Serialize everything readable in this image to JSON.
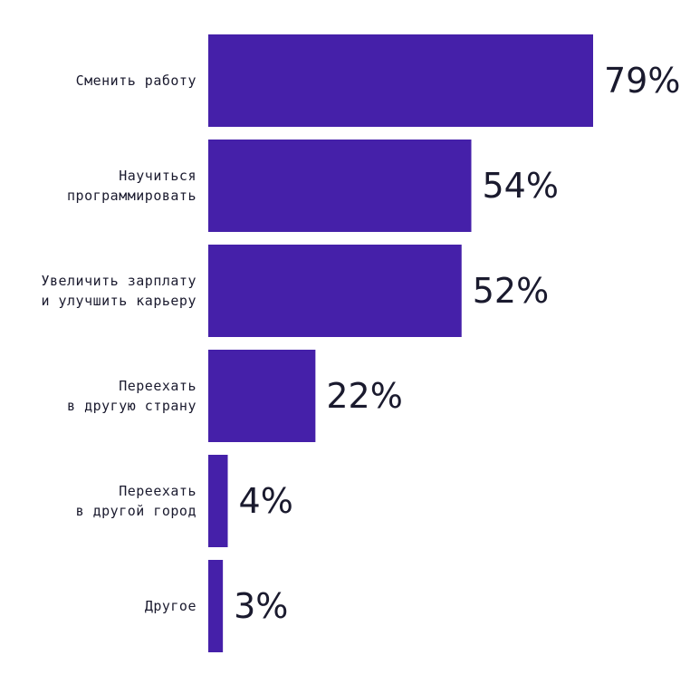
{
  "chart_data": {
    "type": "bar",
    "orientation": "horizontal",
    "categories": [
      [
        "Сменить работу"
      ],
      [
        "Научиться",
        "программировать"
      ],
      [
        "Увеличить зарплату",
        "и улучшить карьеру"
      ],
      [
        "Переехать",
        "в другую страну"
      ],
      [
        "Переехать",
        "в другой город"
      ],
      [
        "Другое"
      ]
    ],
    "values": [
      79,
      54,
      52,
      22,
      4,
      3
    ],
    "value_labels": [
      "79%",
      "54%",
      "52%",
      "22%",
      "4%",
      "3%"
    ],
    "xlim": [
      0,
      100
    ],
    "grid": false,
    "legend": "none",
    "bar_color": "#4520a9",
    "text_color": "#1a1a2e"
  }
}
